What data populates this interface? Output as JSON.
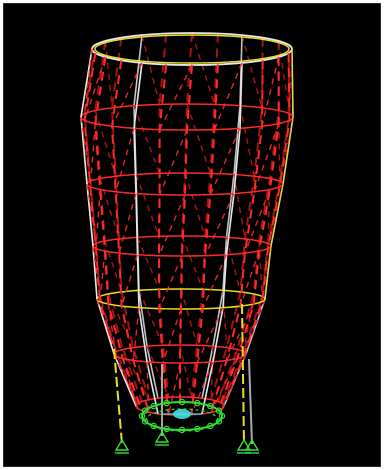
{
  "colors": {
    "background": "#000000",
    "member_red": "#ff2a2a",
    "member_red_dark": "#c01818",
    "member_white": "#e8e8e8",
    "member_gray": "#a8a8a8",
    "member_yellow": "#e8e020",
    "support_green": "#30e030",
    "node_cyan": "#40e0e0"
  },
  "model": {
    "structure": "tower-shell-wireframe",
    "ring_count": 7,
    "meridian_count": 24,
    "support_count": 4
  }
}
